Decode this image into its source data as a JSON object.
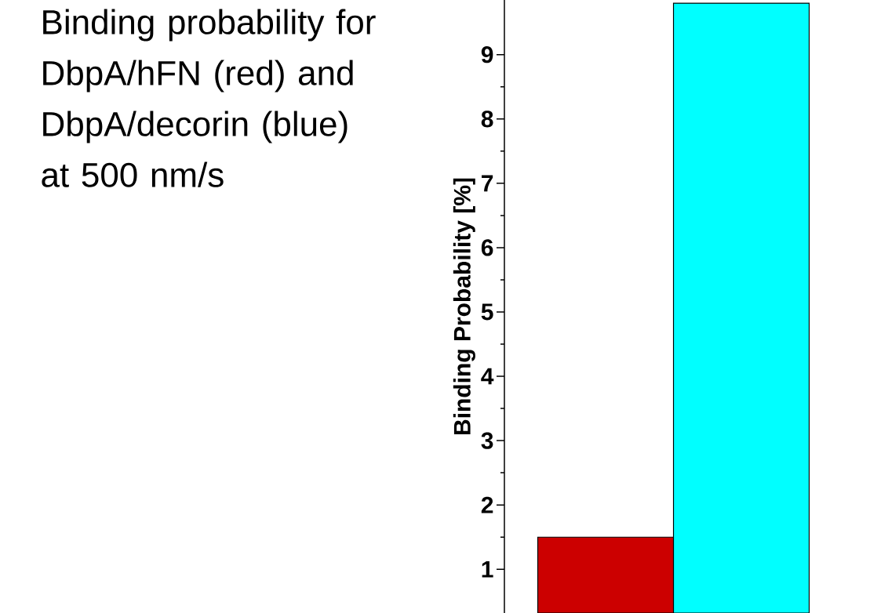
{
  "chart_data": {
    "type": "bar",
    "title": "Binding probability for DbpA/hFN (red) and DbpA/decorin (blue) at 500 nm/s",
    "ylabel": "Binding Probability [%]",
    "categories": [
      null,
      null
    ],
    "values": [
      1.5,
      9.8
    ],
    "colors": [
      "#cc0000",
      "#00ffff"
    ],
    "ylim": [
      0.32,
      9.85
    ],
    "yticks": [
      1,
      2,
      3,
      4,
      5,
      6,
      7,
      8,
      9
    ]
  }
}
